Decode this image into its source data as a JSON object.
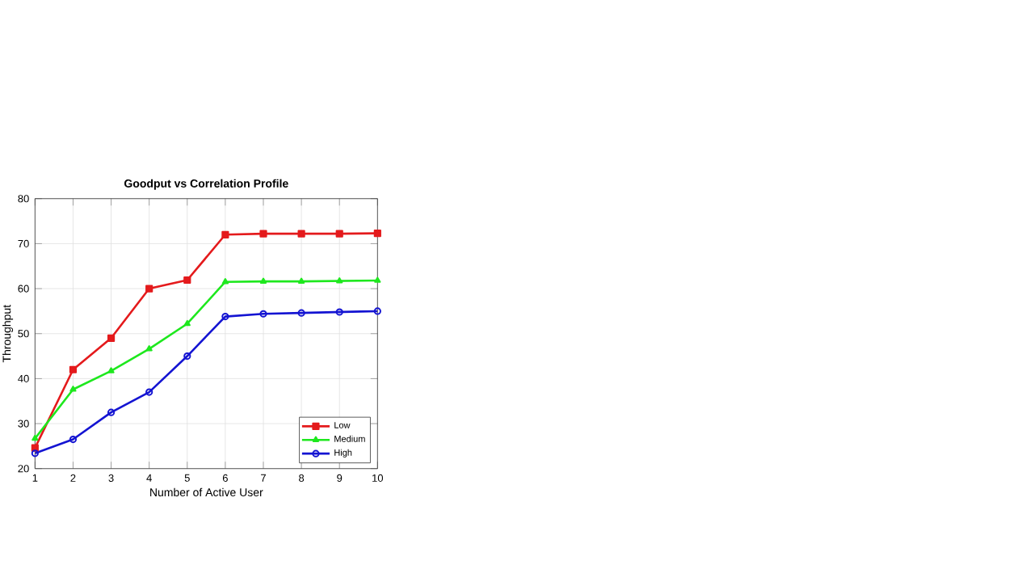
{
  "chart_data": {
    "type": "line",
    "title": "Goodput vs Correlation Profile",
    "xlabel": "Number of Active User",
    "ylabel": "Throughput",
    "x": [
      1,
      2,
      3,
      4,
      5,
      6,
      7,
      8,
      9,
      10
    ],
    "series": [
      {
        "name": "Low",
        "color": "#e41a1c",
        "marker": "square",
        "values": [
          24.6,
          42.0,
          49.0,
          60.0,
          61.9,
          72.0,
          72.2,
          72.2,
          72.2,
          72.3
        ]
      },
      {
        "name": "Medium",
        "color": "#1ee81e",
        "marker": "triangle",
        "values": [
          26.7,
          37.6,
          41.7,
          46.6,
          52.2,
          61.5,
          61.6,
          61.6,
          61.7,
          61.8
        ]
      },
      {
        "name": "High",
        "color": "#1414d2",
        "marker": "circle",
        "values": [
          23.4,
          26.5,
          32.5,
          37.0,
          45.0,
          53.8,
          54.4,
          54.6,
          54.8,
          55.0
        ]
      }
    ],
    "xlim": [
      1,
      10
    ],
    "xticks": [
      1,
      2,
      3,
      4,
      5,
      6,
      7,
      8,
      9,
      10
    ],
    "ylim": [
      20,
      80
    ],
    "yticks": [
      20,
      30,
      40,
      50,
      60,
      70,
      80
    ],
    "grid": true,
    "legend": "bottom right",
    "line_style": "solid"
  }
}
